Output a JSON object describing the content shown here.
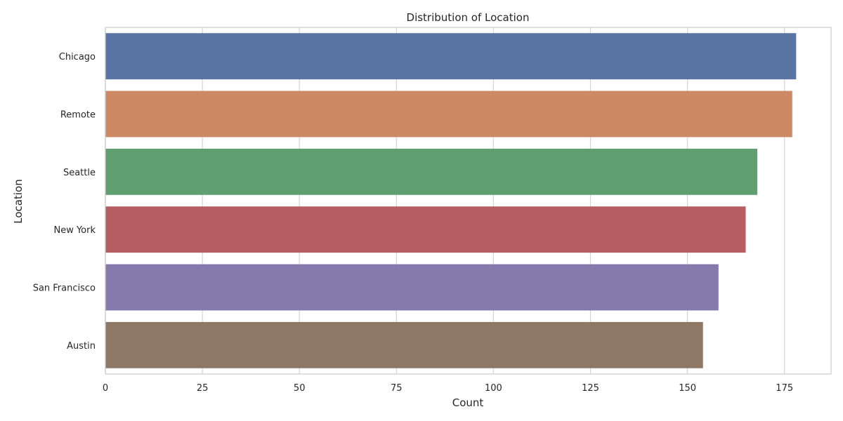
{
  "chart_data": {
    "type": "bar",
    "orientation": "horizontal",
    "title": "Distribution of Location",
    "xlabel": "Count",
    "ylabel": "Location",
    "categories": [
      "Chicago",
      "Remote",
      "Seattle",
      "New York",
      "San Francisco",
      "Austin"
    ],
    "values": [
      178,
      177,
      168,
      165,
      158,
      154
    ],
    "xlim": [
      0,
      187
    ],
    "xticks": [
      0,
      25,
      50,
      75,
      100,
      125,
      150,
      175
    ],
    "grid": true,
    "colors": [
      "#5975a4",
      "#cc8963",
      "#5f9e6e",
      "#b55d60",
      "#857aab",
      "#8d7866"
    ]
  }
}
